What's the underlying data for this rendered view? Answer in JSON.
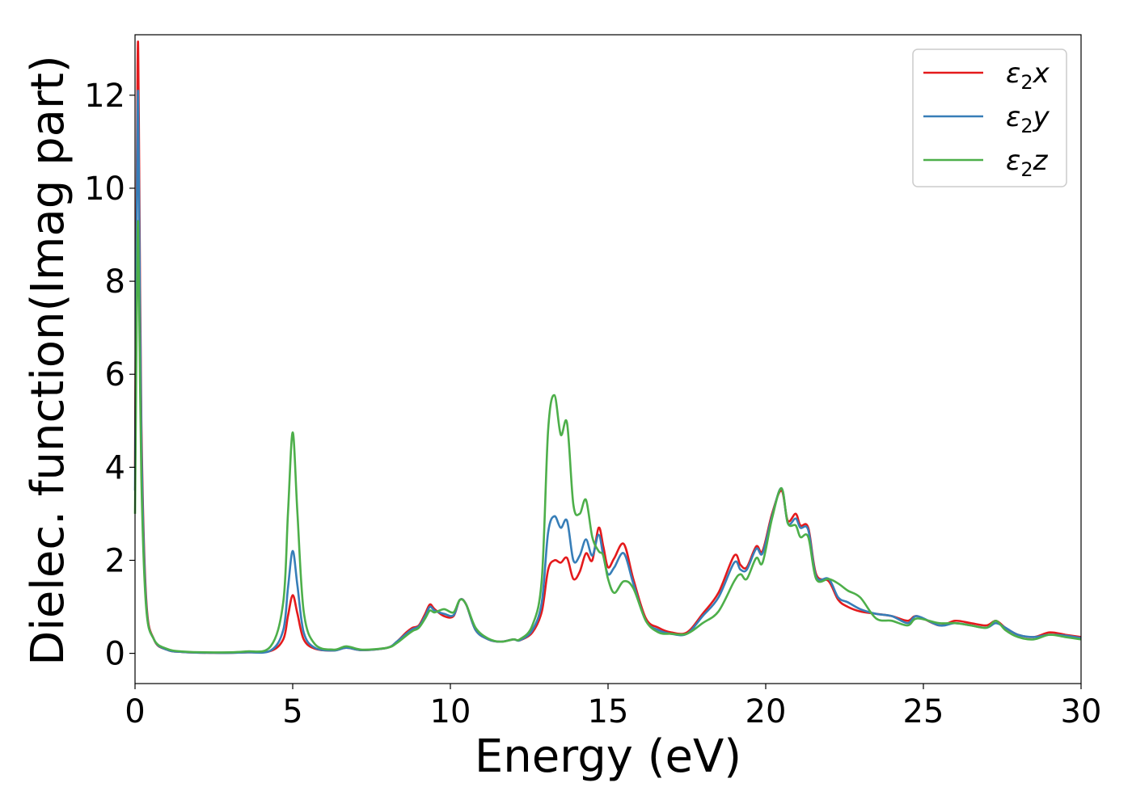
{
  "chart_data": {
    "type": "line",
    "xlabel": "Energy (eV)",
    "ylabel": "Dielec. function(Imag part)",
    "xlim": [
      0,
      30
    ],
    "ylim": [
      -0.65,
      13.3
    ],
    "xticks": [
      0,
      5,
      10,
      15,
      20,
      25,
      30
    ],
    "yticks": [
      0,
      2,
      4,
      6,
      8,
      10,
      12
    ],
    "grid": false,
    "legend_position": "top-right",
    "series": [
      {
        "name": "ε₂x",
        "legend_base": "ε",
        "legend_sub": "2",
        "legend_suffix": "x",
        "color": "#e41a1c",
        "x": [
          0.0,
          0.08,
          0.12,
          0.2,
          0.35,
          0.6,
          1.0,
          1.5,
          2.5,
          3.5,
          4.3,
          4.7,
          4.85,
          5.0,
          5.15,
          5.35,
          5.7,
          6.3,
          6.7,
          7.2,
          8.0,
          8.3,
          8.6,
          8.8,
          9.0,
          9.2,
          9.35,
          9.5,
          9.8,
          10.1,
          10.3,
          10.5,
          10.8,
          11.2,
          11.6,
          12.0,
          12.2,
          12.6,
          12.9,
          13.1,
          13.3,
          13.5,
          13.7,
          13.9,
          14.1,
          14.3,
          14.5,
          14.7,
          14.85,
          15.0,
          15.2,
          15.5,
          15.8,
          16.2,
          16.6,
          17.0,
          17.5,
          18.0,
          18.5,
          19.0,
          19.2,
          19.4,
          19.7,
          19.9,
          20.2,
          20.5,
          20.7,
          20.95,
          21.1,
          21.35,
          21.6,
          22.0,
          22.3,
          22.6,
          23.0,
          23.5,
          24.0,
          24.5,
          24.8,
          25.5,
          26.0,
          26.5,
          27.0,
          27.3,
          27.6,
          28.0,
          28.5,
          29.0,
          29.5,
          30.0
        ],
        "y": [
          4.0,
          12.6,
          11.5,
          5.0,
          1.2,
          0.3,
          0.08,
          0.03,
          0.01,
          0.02,
          0.05,
          0.3,
          0.8,
          1.25,
          0.85,
          0.3,
          0.1,
          0.06,
          0.12,
          0.07,
          0.12,
          0.25,
          0.45,
          0.55,
          0.6,
          0.85,
          1.05,
          0.95,
          0.8,
          0.8,
          1.15,
          1.05,
          0.5,
          0.3,
          0.25,
          0.3,
          0.28,
          0.45,
          0.9,
          1.8,
          2.0,
          1.95,
          2.05,
          1.6,
          1.75,
          2.15,
          2.0,
          2.7,
          2.3,
          1.85,
          2.05,
          2.35,
          1.6,
          0.75,
          0.55,
          0.45,
          0.45,
          0.85,
          1.3,
          2.1,
          1.9,
          1.85,
          2.3,
          2.2,
          3.0,
          3.5,
          2.85,
          3.0,
          2.75,
          2.7,
          1.7,
          1.55,
          1.15,
          1.0,
          0.9,
          0.85,
          0.8,
          0.7,
          0.8,
          0.6,
          0.7,
          0.65,
          0.6,
          0.7,
          0.55,
          0.4,
          0.35,
          0.45,
          0.4,
          0.35
        ]
      },
      {
        "name": "ε₂y",
        "legend_base": "ε",
        "legend_sub": "2",
        "legend_suffix": "y",
        "color": "#377eb8",
        "x": [
          0.0,
          0.08,
          0.12,
          0.2,
          0.35,
          0.6,
          1.0,
          1.5,
          2.5,
          3.5,
          4.3,
          4.7,
          4.85,
          5.0,
          5.15,
          5.35,
          5.7,
          6.3,
          6.7,
          7.2,
          8.0,
          8.3,
          8.6,
          8.8,
          9.0,
          9.2,
          9.35,
          9.5,
          9.8,
          10.1,
          10.3,
          10.5,
          10.8,
          11.2,
          11.6,
          12.0,
          12.2,
          12.6,
          12.9,
          13.1,
          13.3,
          13.5,
          13.7,
          13.9,
          14.1,
          14.3,
          14.5,
          14.7,
          14.85,
          15.0,
          15.2,
          15.5,
          15.8,
          16.2,
          16.6,
          17.0,
          17.5,
          18.0,
          18.5,
          19.0,
          19.2,
          19.4,
          19.7,
          19.9,
          20.2,
          20.5,
          20.7,
          20.95,
          21.1,
          21.35,
          21.6,
          22.0,
          22.3,
          22.6,
          23.0,
          23.5,
          24.0,
          24.5,
          24.8,
          25.5,
          26.0,
          26.5,
          27.0,
          27.3,
          27.6,
          28.0,
          28.5,
          29.0,
          29.5,
          30.0
        ],
        "y": [
          3.5,
          11.6,
          10.5,
          4.6,
          1.1,
          0.3,
          0.08,
          0.03,
          0.01,
          0.02,
          0.06,
          0.5,
          1.4,
          2.2,
          1.45,
          0.45,
          0.12,
          0.06,
          0.12,
          0.07,
          0.12,
          0.25,
          0.42,
          0.52,
          0.58,
          0.8,
          1.0,
          0.92,
          0.85,
          0.82,
          1.15,
          1.05,
          0.5,
          0.3,
          0.25,
          0.3,
          0.28,
          0.5,
          1.1,
          2.6,
          2.95,
          2.7,
          2.85,
          2.0,
          2.1,
          2.45,
          2.1,
          2.55,
          2.1,
          1.7,
          1.85,
          2.15,
          1.5,
          0.7,
          0.5,
          0.42,
          0.42,
          0.8,
          1.2,
          1.95,
          1.8,
          1.8,
          2.25,
          2.15,
          2.95,
          3.55,
          2.8,
          2.9,
          2.7,
          2.65,
          1.65,
          1.6,
          1.2,
          1.1,
          0.95,
          0.85,
          0.8,
          0.65,
          0.8,
          0.6,
          0.65,
          0.6,
          0.55,
          0.65,
          0.55,
          0.4,
          0.35,
          0.4,
          0.38,
          0.33
        ]
      },
      {
        "name": "ε₂z",
        "legend_base": "ε",
        "legend_sub": "2",
        "legend_suffix": "z",
        "color": "#4daf4a",
        "x": [
          0.0,
          0.08,
          0.12,
          0.2,
          0.35,
          0.6,
          1.0,
          1.5,
          2.5,
          3.5,
          4.3,
          4.7,
          4.85,
          5.0,
          5.15,
          5.35,
          5.7,
          6.3,
          6.7,
          7.2,
          8.0,
          8.3,
          8.6,
          8.8,
          9.0,
          9.2,
          9.35,
          9.5,
          9.8,
          10.1,
          10.3,
          10.5,
          10.8,
          11.2,
          11.6,
          12.0,
          12.2,
          12.6,
          12.9,
          13.1,
          13.3,
          13.5,
          13.7,
          13.9,
          14.1,
          14.3,
          14.5,
          14.7,
          14.85,
          15.0,
          15.2,
          15.5,
          15.8,
          16.2,
          16.6,
          17.0,
          17.5,
          18.0,
          18.5,
          19.0,
          19.2,
          19.4,
          19.7,
          19.9,
          20.2,
          20.5,
          20.7,
          20.95,
          21.1,
          21.35,
          21.6,
          22.0,
          22.3,
          22.6,
          23.0,
          23.5,
          24.0,
          24.5,
          24.8,
          25.5,
          26.0,
          26.5,
          27.0,
          27.3,
          27.6,
          28.0,
          28.5,
          29.0,
          29.5,
          30.0
        ],
        "y": [
          3.0,
          8.9,
          8.2,
          3.8,
          1.0,
          0.3,
          0.1,
          0.04,
          0.02,
          0.04,
          0.15,
          1.1,
          3.0,
          4.75,
          3.0,
          0.9,
          0.2,
          0.08,
          0.15,
          0.08,
          0.12,
          0.22,
          0.38,
          0.48,
          0.55,
          0.75,
          0.92,
          0.88,
          0.95,
          0.88,
          1.15,
          1.05,
          0.55,
          0.32,
          0.25,
          0.3,
          0.3,
          0.6,
          1.6,
          4.8,
          5.55,
          4.7,
          4.95,
          3.2,
          3.0,
          3.3,
          2.5,
          2.2,
          2.1,
          1.6,
          1.3,
          1.55,
          1.4,
          0.7,
          0.45,
          0.42,
          0.42,
          0.65,
          0.9,
          1.55,
          1.7,
          1.6,
          2.05,
          1.95,
          2.9,
          3.55,
          2.8,
          2.75,
          2.5,
          2.5,
          1.6,
          1.6,
          1.5,
          1.35,
          1.2,
          0.75,
          0.7,
          0.6,
          0.75,
          0.65,
          0.65,
          0.6,
          0.55,
          0.7,
          0.5,
          0.35,
          0.3,
          0.4,
          0.35,
          0.3
        ]
      }
    ]
  }
}
